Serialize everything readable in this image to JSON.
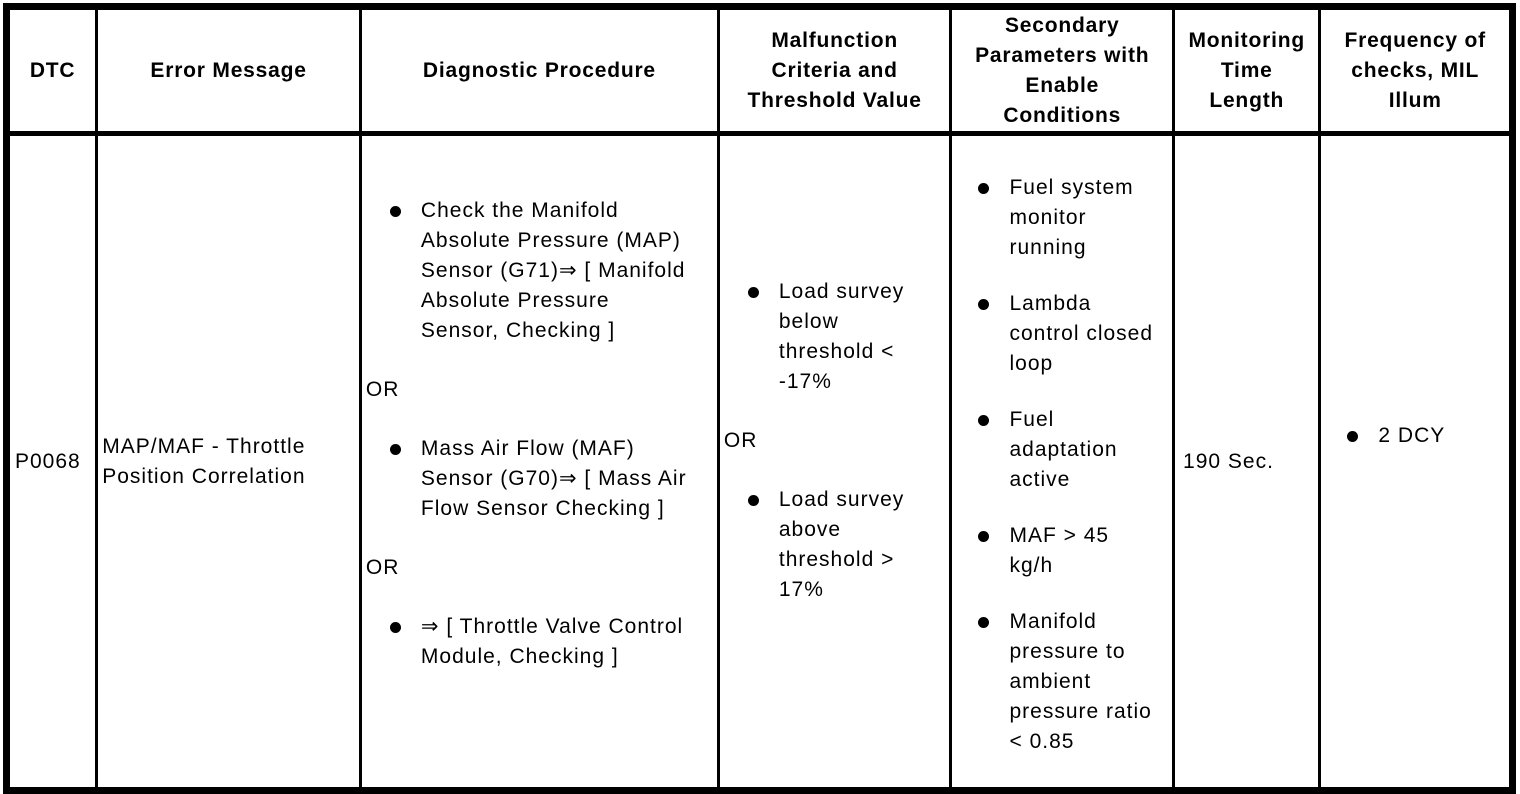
{
  "page": {
    "background_color": "#ffffff",
    "border_color": "#000000"
  },
  "icons": {
    "bullet": "filled-circle"
  },
  "table": {
    "columns": [
      {
        "label": "DTC"
      },
      {
        "label": "Error Message"
      },
      {
        "label": "Diagnostic Procedure"
      },
      {
        "label": "Malfunction\nCriteria and\nThreshold Value"
      },
      {
        "label": "Secondary\nParameters with\nEnable\nConditions"
      },
      {
        "label": "Monitoring\nTime\nLength"
      },
      {
        "label": "Frequency of\nchecks, MIL\nIllum"
      }
    ],
    "row": {
      "dtc": "P0068",
      "error_message": "MAP/MAF - Throttle\nPosition Correlation",
      "diagnostic_procedure": [
        {
          "bullet": true,
          "text": "Check the Manifold\nAbsolute Pressure (MAP)\nSensor (G71)⇒ [ Manifold\nAbsolute Pressure\nSensor, Checking ]"
        },
        {
          "bullet": false,
          "text": "OR"
        },
        {
          "bullet": true,
          "text": "Mass Air Flow (MAF)\nSensor (G70)⇒ [ Mass Air\nFlow Sensor Checking ]"
        },
        {
          "bullet": false,
          "text": "OR"
        },
        {
          "bullet": true,
          "text": "⇒ [ Throttle Valve Control\nModule, Checking ]"
        }
      ],
      "malfunction_criteria": [
        {
          "bullet": true,
          "text": "Load survey\nbelow\nthreshold <\n-17%"
        },
        {
          "bullet": false,
          "text": "OR"
        },
        {
          "bullet": true,
          "text": "Load survey\nabove\nthreshold >\n17%"
        }
      ],
      "secondary_parameters": [
        {
          "bullet": true,
          "text": "Fuel system\nmonitor\nrunning"
        },
        {
          "bullet": true,
          "text": "Lambda\ncontrol closed\nloop"
        },
        {
          "bullet": true,
          "text": "Fuel\nadaptation\nactive"
        },
        {
          "bullet": true,
          "text": "MAF > 45\nkg/h"
        },
        {
          "bullet": true,
          "text": "Manifold\npressure to\nambient\npressure ratio\n< 0.85"
        }
      ],
      "monitoring_time": "190 Sec.",
      "frequency": [
        {
          "bullet": true,
          "text": "2 DCY"
        }
      ]
    }
  }
}
